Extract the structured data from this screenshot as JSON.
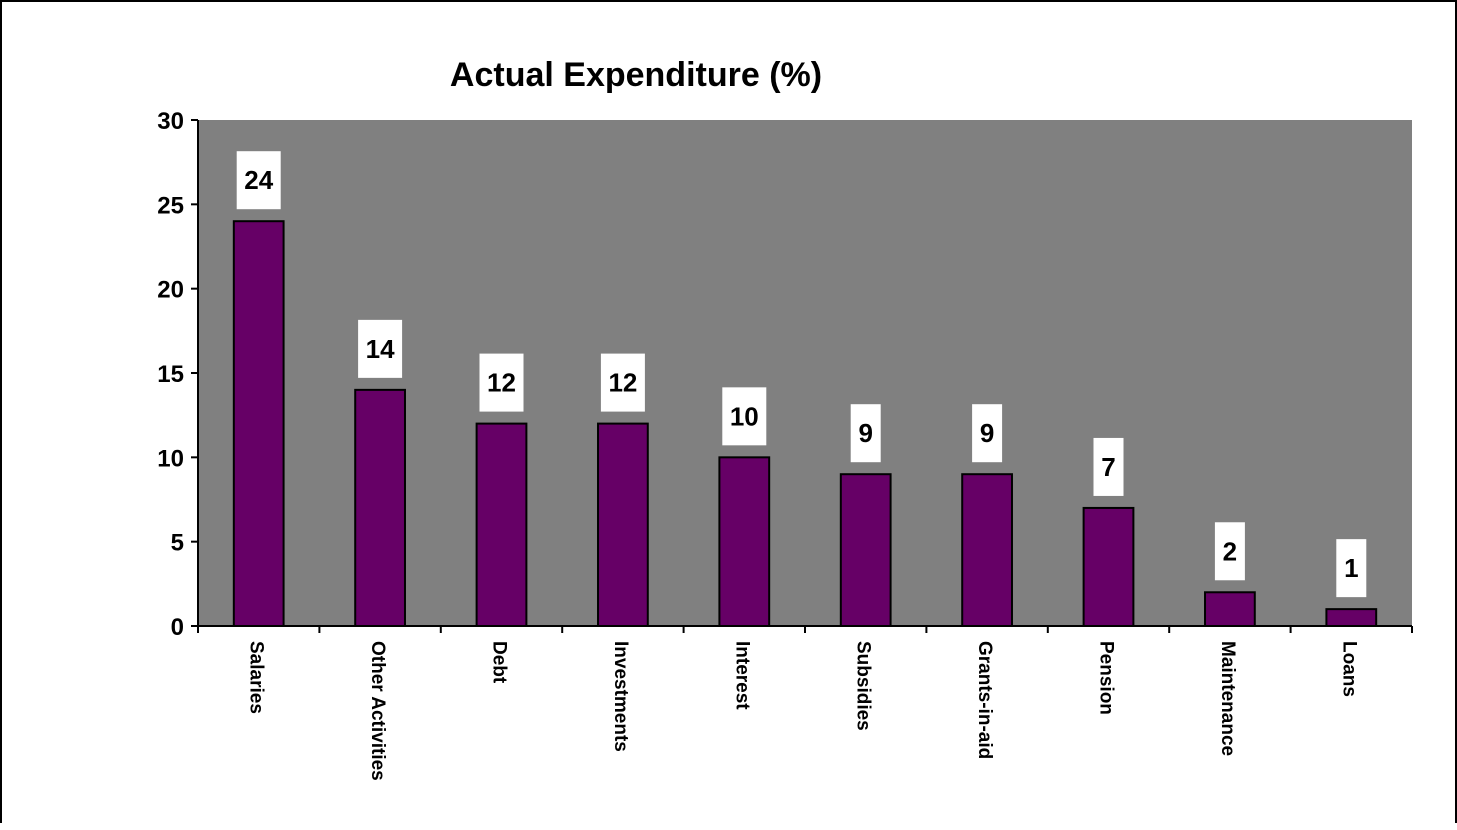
{
  "chart_data": {
    "type": "bar",
    "title": "Actual Expenditure (%)",
    "xlabel": "",
    "ylabel": "",
    "categories": [
      "Salaries",
      "Other Activities",
      "Debt",
      "Investments",
      "Interest",
      "Subsidies",
      "Grants-in-aid",
      "Pension",
      "Maintenance",
      "Loans"
    ],
    "values": [
      24,
      14,
      12,
      12,
      10,
      9,
      9,
      7,
      2,
      1
    ],
    "value_labels": [
      "24",
      "14",
      "12",
      "12",
      "10",
      "9",
      "9",
      "7",
      "2",
      "1"
    ],
    "yticks": [
      "0",
      "5",
      "10",
      "15",
      "20",
      "25",
      "30"
    ],
    "ylim": [
      0,
      30
    ],
    "grid": false,
    "legend": "none",
    "colors": {
      "plot_background": "#808080",
      "bar_fill": "#660066",
      "bar_stroke": "#000000",
      "label_background": "#ffffff"
    }
  }
}
